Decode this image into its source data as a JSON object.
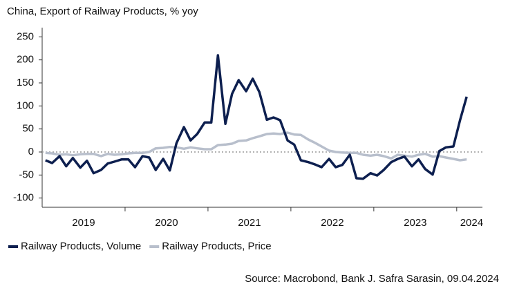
{
  "chart_data": {
    "type": "line",
    "title": "China, Export of Railway Products, % yoy",
    "source": "Source: Macrobond, Bank J. Safra Sarasin, 09.04.2024",
    "x": [
      2019.04,
      2019.12,
      2019.21,
      2019.29,
      2019.37,
      2019.46,
      2019.54,
      2019.62,
      2019.71,
      2019.79,
      2019.87,
      2019.96,
      2020.04,
      2020.12,
      2020.21,
      2020.29,
      2020.37,
      2020.46,
      2020.54,
      2020.62,
      2020.71,
      2020.79,
      2020.87,
      2020.96,
      2021.04,
      2021.12,
      2021.21,
      2021.29,
      2021.37,
      2021.46,
      2021.54,
      2021.62,
      2021.71,
      2021.79,
      2021.87,
      2021.96,
      2022.04,
      2022.12,
      2022.21,
      2022.29,
      2022.37,
      2022.46,
      2022.54,
      2022.62,
      2022.71,
      2022.79,
      2022.87,
      2022.96,
      2023.04,
      2023.12,
      2023.21,
      2023.29,
      2023.37,
      2023.46,
      2023.54,
      2023.62,
      2023.71,
      2023.79,
      2023.87,
      2023.96,
      2024.04,
      2024.12
    ],
    "series": [
      {
        "name": "Railway Products, Volume",
        "color": "#0d1f4f",
        "values": [
          -18,
          -24,
          -9,
          -31,
          -13,
          -34,
          -19,
          -46,
          -39,
          -25,
          -21,
          -16,
          -16,
          -33,
          -9,
          -12,
          -39,
          -15,
          -40,
          19,
          54,
          25,
          39,
          64,
          64,
          210,
          61,
          126,
          156,
          132,
          159,
          130,
          70,
          75,
          69,
          25,
          16,
          -18,
          -22,
          -27,
          -33,
          -15,
          -33,
          -28,
          -6,
          -57,
          -58,
          -46,
          -51,
          -39,
          -22,
          -15,
          -10,
          -31,
          -16,
          -37,
          -49,
          2,
          10,
          12,
          69,
          120
        ]
      },
      {
        "name": "Railway Products, Price",
        "color": "#b8bfcc",
        "values": [
          -2,
          -3,
          -6,
          -5,
          -7,
          -5,
          -4,
          -4,
          -9,
          -4,
          -6,
          -5,
          -3,
          -2,
          -2,
          0,
          8,
          9,
          11,
          10,
          7,
          10,
          8,
          6,
          6,
          15,
          16,
          18,
          24,
          25,
          30,
          34,
          39,
          40,
          39,
          42,
          38,
          37,
          27,
          20,
          12,
          3,
          0,
          -1,
          -2,
          -2,
          -6,
          -8,
          -6,
          -9,
          -14,
          -6,
          -8,
          -10,
          -6,
          -4,
          -10,
          -9,
          -12,
          -15,
          -18,
          -16
        ]
      }
    ],
    "xlim": [
      2019,
      2024.31
    ],
    "xticks": [
      {
        "value": 2019.5,
        "label": "2019"
      },
      {
        "value": 2020.5,
        "label": "2020"
      },
      {
        "value": 2021.5,
        "label": "2021"
      },
      {
        "value": 2022.5,
        "label": "2022"
      },
      {
        "value": 2023.5,
        "label": "2023"
      },
      {
        "value": 2024.18,
        "label": "2024"
      }
    ],
    "xtick_marks": [
      2020,
      2021,
      2022,
      2023,
      2024
    ],
    "ylim": [
      -120,
      270
    ],
    "yticks": [
      -100,
      -50,
      0,
      50,
      100,
      150,
      200,
      250
    ],
    "zero_line": true,
    "legend": "bottom"
  }
}
